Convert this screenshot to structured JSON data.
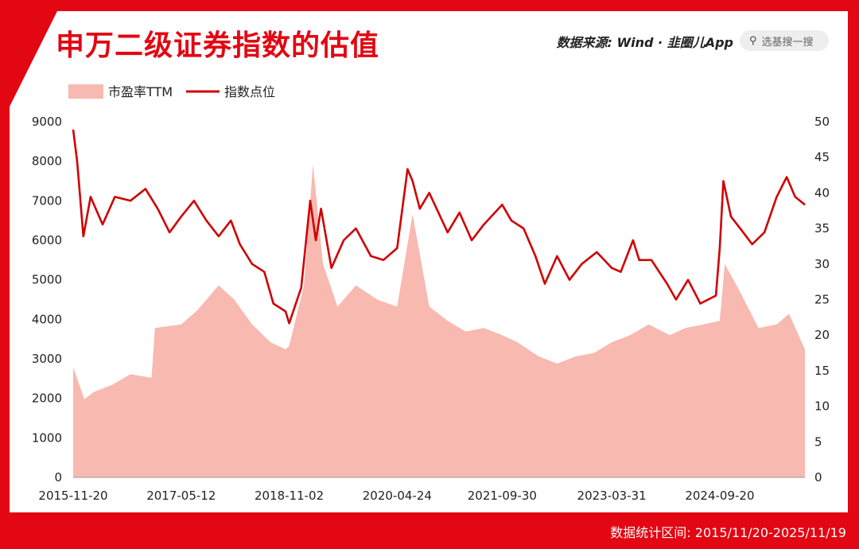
{
  "header": {
    "title": "申万二级证券指数的估值",
    "source": "数据来源: Wind · 韭圈儿App",
    "search_placeholder": "选基搜一搜",
    "search_icon": "search-icon"
  },
  "footer": {
    "note": "数据统计区间: 2015/11/20-2025/11/19"
  },
  "colors": {
    "accent": "#e30613",
    "line": "#d00000",
    "area": "#f8b9b0"
  },
  "chart_data": {
    "type": "line",
    "title": "申万二级证券指数的估值",
    "legend": [
      "市盈率TTM",
      "指数点位"
    ],
    "legend_position": "top-left",
    "x_tick_labels": [
      "2015-11-20",
      "2017-05-12",
      "2018-11-02",
      "2020-04-24",
      "2021-09-30",
      "2023-03-31",
      "2024-09-20"
    ],
    "y_left": {
      "label": "",
      "range": [
        0,
        9000
      ],
      "ticks": [
        0,
        1000,
        2000,
        3000,
        4000,
        5000,
        6000,
        7000,
        8000,
        9000
      ]
    },
    "y_right": {
      "label": "",
      "range": [
        0,
        50
      ],
      "ticks": [
        0,
        5,
        10,
        15,
        20,
        25,
        30,
        35,
        40,
        45,
        50
      ]
    },
    "x_range": [
      "2015-11-20",
      "2025-11-19"
    ],
    "series": [
      {
        "name": "市盈率TTM",
        "type": "area",
        "axis": "right",
        "x": [
          "2015-11-20",
          "2016-01-15",
          "2016-03-01",
          "2016-06-01",
          "2016-09-01",
          "2016-12-15",
          "2017-01-01",
          "2017-05-12",
          "2017-08-01",
          "2017-11-15",
          "2018-02-01",
          "2018-05-01",
          "2018-08-01",
          "2018-10-15",
          "2018-11-02",
          "2019-01-15",
          "2019-03-01",
          "2019-04-20",
          "2019-07-01",
          "2019-10-01",
          "2020-01-15",
          "2020-04-24",
          "2020-07-10",
          "2020-10-01",
          "2021-01-01",
          "2021-04-01",
          "2021-07-01",
          "2021-09-30",
          "2021-12-15",
          "2022-04-01",
          "2022-07-01",
          "2022-10-01",
          "2023-01-01",
          "2023-03-31",
          "2023-07-01",
          "2023-10-01",
          "2024-01-15",
          "2024-04-01",
          "2024-07-01",
          "2024-09-20",
          "2024-10-15",
          "2025-01-01",
          "2025-04-01",
          "2025-07-01",
          "2025-09-01",
          "2025-11-19"
        ],
        "values": [
          15.5,
          11.0,
          12.0,
          13.0,
          14.5,
          14.0,
          21.0,
          21.5,
          23.5,
          27.0,
          25.0,
          21.5,
          19.0,
          18.0,
          18.5,
          27.0,
          44.0,
          30.0,
          24.0,
          27.0,
          25.0,
          24.0,
          37.0,
          24.0,
          22.0,
          20.5,
          21.0,
          20.0,
          19.0,
          17.0,
          16.0,
          17.0,
          17.5,
          19.0,
          20.0,
          21.5,
          20.0,
          21.0,
          21.5,
          22.0,
          30.0,
          26.0,
          21.0,
          21.5,
          23.0,
          18.0
        ]
      },
      {
        "name": "指数点位",
        "type": "line",
        "axis": "left",
        "x": [
          "2015-11-20",
          "2015-12-10",
          "2016-01-10",
          "2016-02-15",
          "2016-04-15",
          "2016-06-15",
          "2016-09-01",
          "2016-11-15",
          "2017-01-15",
          "2017-03-15",
          "2017-05-12",
          "2017-07-15",
          "2017-09-15",
          "2017-11-15",
          "2018-01-15",
          "2018-03-01",
          "2018-05-01",
          "2018-07-01",
          "2018-08-15",
          "2018-10-15",
          "2018-11-02",
          "2019-01-01",
          "2019-02-15",
          "2019-03-15",
          "2019-04-10",
          "2019-06-01",
          "2019-08-01",
          "2019-10-01",
          "2019-12-15",
          "2020-02-15",
          "2020-04-24",
          "2020-06-15",
          "2020-07-10",
          "2020-08-15",
          "2020-10-01",
          "2021-01-01",
          "2021-03-01",
          "2021-05-01",
          "2021-07-01",
          "2021-09-30",
          "2021-11-15",
          "2022-01-15",
          "2022-03-15",
          "2022-05-01",
          "2022-07-01",
          "2022-09-01",
          "2022-11-01",
          "2023-01-15",
          "2023-03-31",
          "2023-05-15",
          "2023-07-15",
          "2023-08-15",
          "2023-10-15",
          "2024-01-01",
          "2024-02-15",
          "2024-04-15",
          "2024-06-15",
          "2024-09-01",
          "2024-09-20",
          "2024-10-08",
          "2024-11-15",
          "2025-01-15",
          "2025-03-01",
          "2025-05-01",
          "2025-07-01",
          "2025-08-20",
          "2025-10-01",
          "2025-11-19"
        ],
        "values": [
          8800,
          8000,
          6100,
          7100,
          6400,
          7100,
          7000,
          7300,
          6800,
          6200,
          6600,
          7000,
          6500,
          6100,
          6500,
          5900,
          5400,
          5200,
          4400,
          4200,
          3900,
          4800,
          7000,
          6000,
          6800,
          5300,
          6000,
          6300,
          5600,
          5500,
          5800,
          7800,
          7500,
          6800,
          7200,
          6200,
          6700,
          6000,
          6400,
          6900,
          6500,
          6300,
          5600,
          4900,
          5600,
          5000,
          5400,
          5700,
          5300,
          5200,
          6000,
          5500,
          5500,
          4900,
          4500,
          5000,
          4400,
          4600,
          5800,
          7500,
          6600,
          6200,
          5900,
          6200,
          7100,
          7600,
          7100,
          6900
        ]
      }
    ]
  }
}
